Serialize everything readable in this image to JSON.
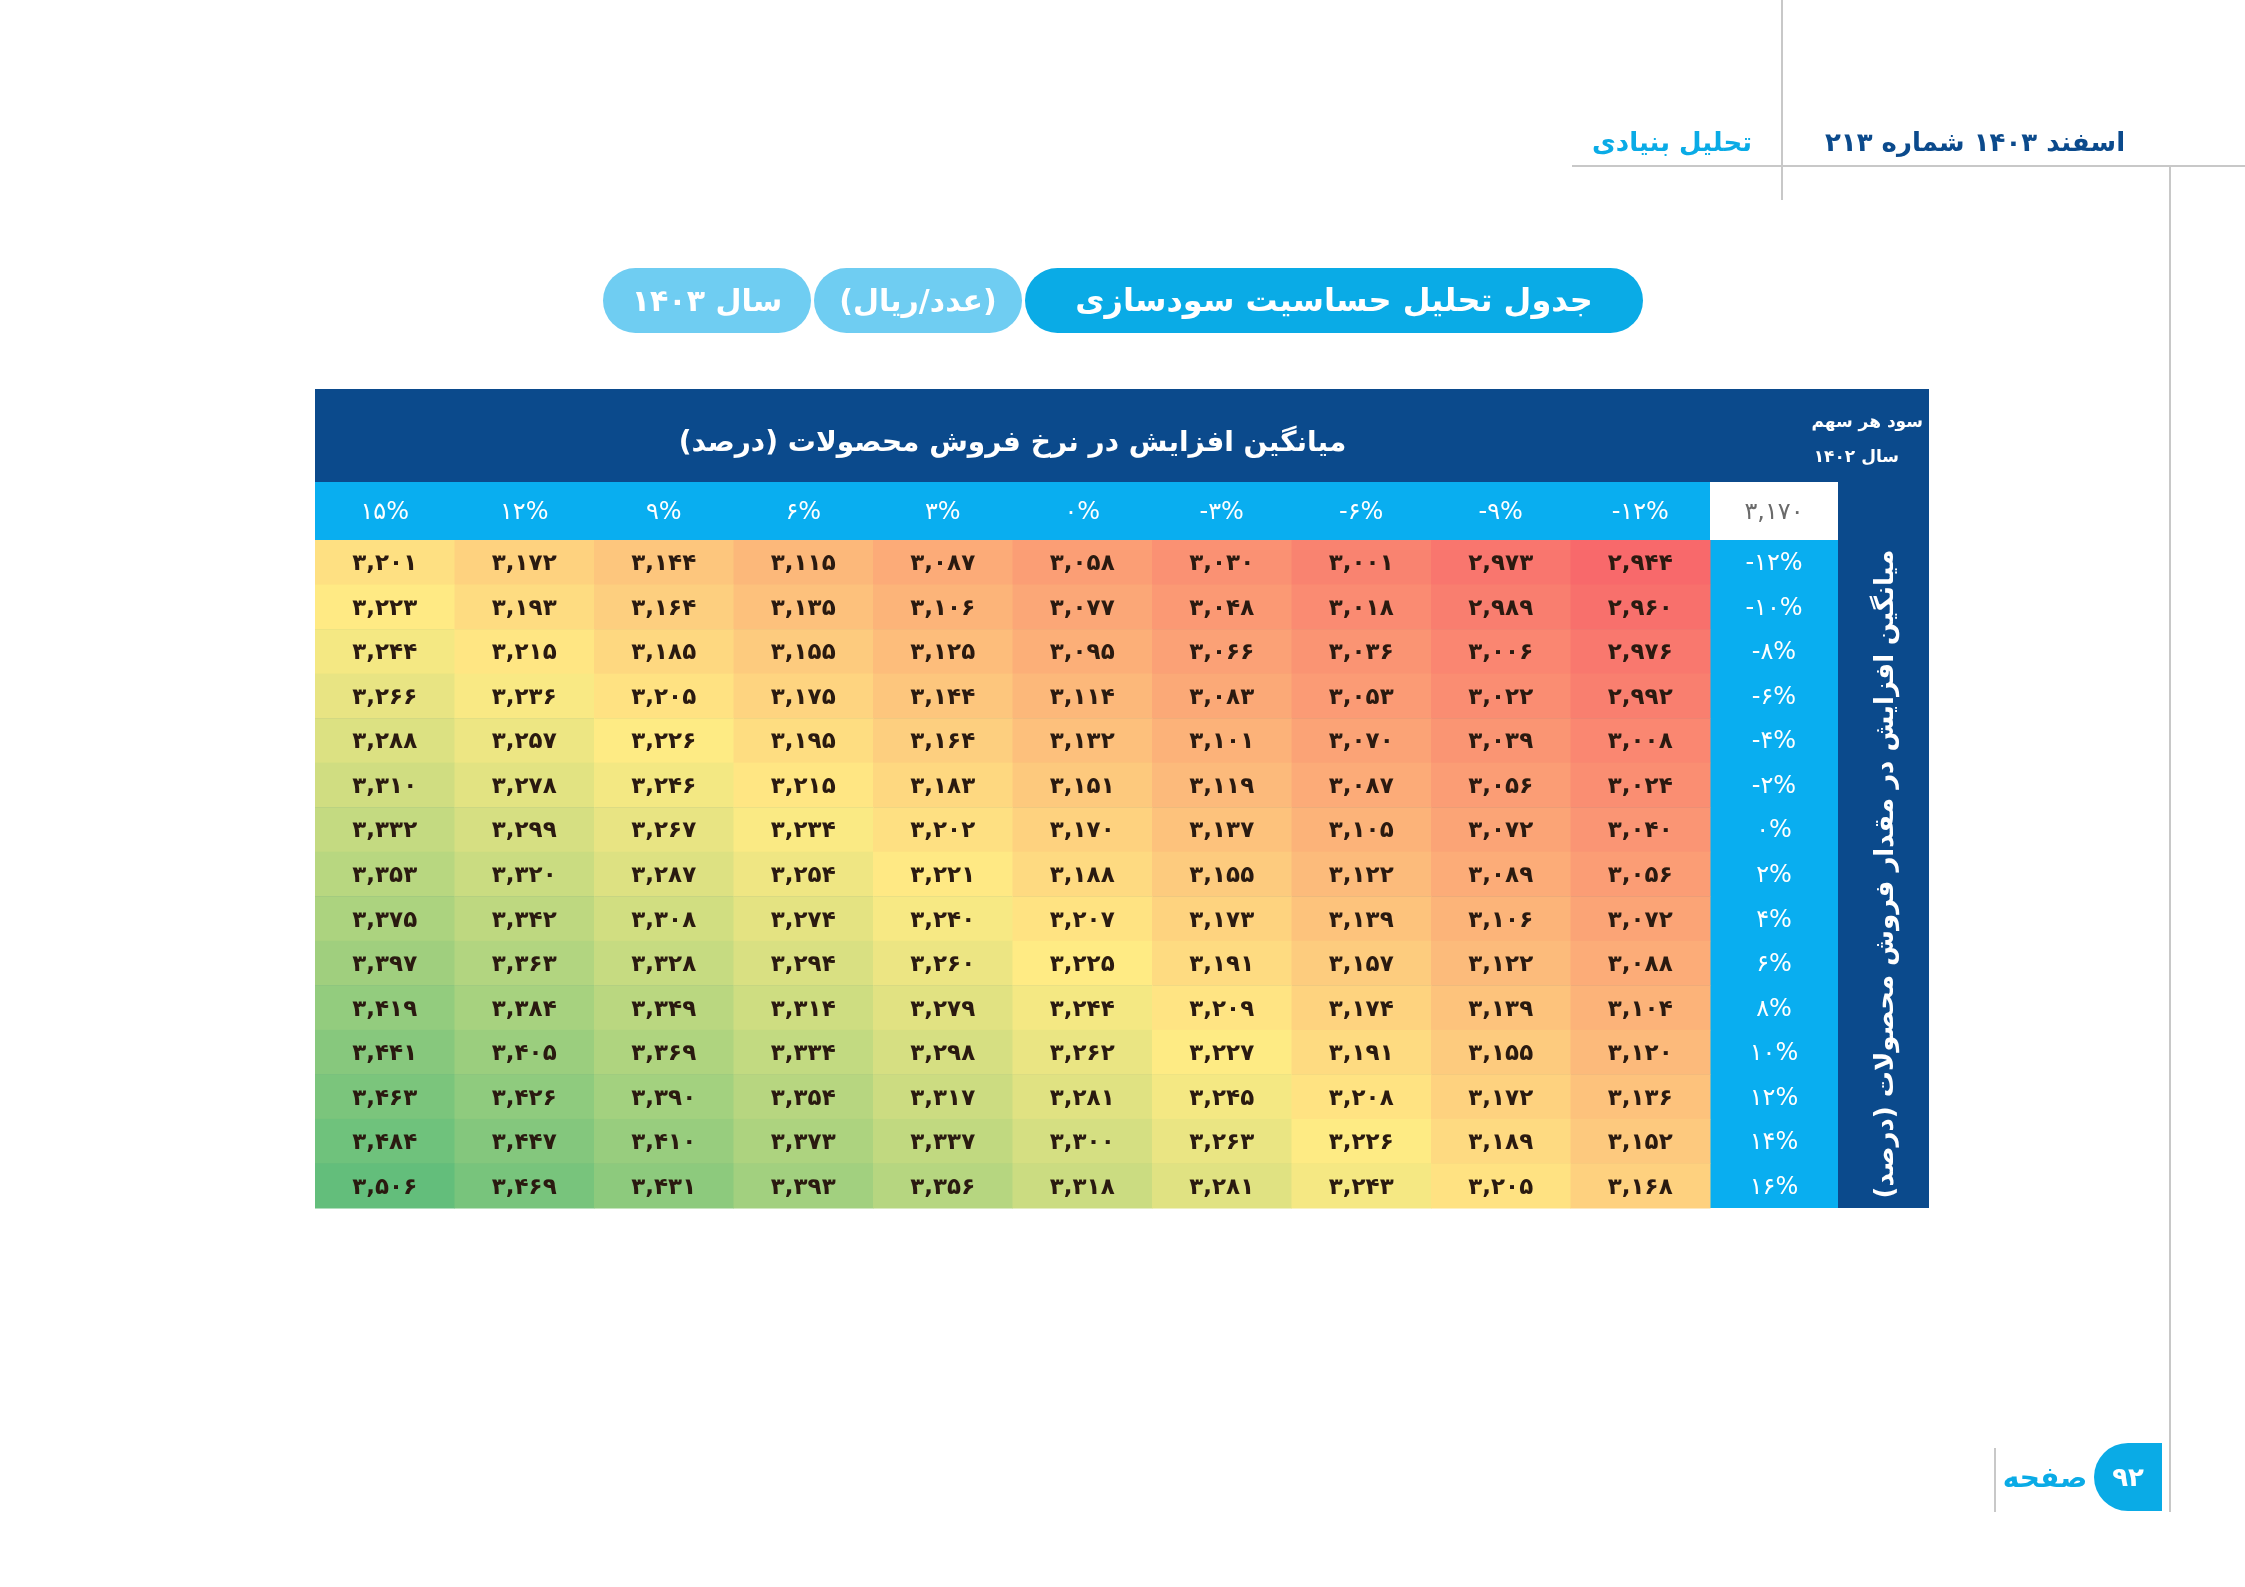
{
  "chart_data": {
    "type": "heatmap",
    "title": "جدول تحلیل حساسیت سودسازی",
    "subtitle": "(عدد/ریال)",
    "xlabel": "میانگین افزایش در نرخ فروش محصولات (درصد)",
    "ylabel": "میانگین افزایش در مقدار فروش محصولات (درصد)",
    "categories": [
      "۱۵%",
      "۱۲%",
      "۹%",
      "۶%",
      "۳%",
      "۰%",
      "-۳%",
      "-۶%",
      "-۹%",
      "-۱۲%"
    ],
    "y_categories": [
      "-۱۲%",
      "-۱۰%",
      "-۸%",
      "-۶%",
      "-۴%",
      "-۲%",
      "۰%",
      "۲%",
      "۴%",
      "۶%",
      "۸%",
      "۱۰%",
      "۱۲%",
      "۱۴%",
      "۱۶%"
    ],
    "cells": [
      [
        3201,
        3172,
        3144,
        3115,
        3087,
        3058,
        3030,
        3001,
        2973,
        2944
      ],
      [
        3223,
        3193,
        3164,
        3135,
        3106,
        3077,
        3048,
        3018,
        2989,
        2960
      ],
      [
        3244,
        3215,
        3185,
        3155,
        3125,
        3095,
        3066,
        3036,
        3006,
        2976
      ],
      [
        3266,
        3236,
        3205,
        3175,
        3144,
        3114,
        3083,
        3053,
        3022,
        2992
      ],
      [
        3288,
        3257,
        3226,
        3195,
        3164,
        3132,
        3101,
        3070,
        3039,
        3008
      ],
      [
        3310,
        3278,
        3246,
        3215,
        3183,
        3151,
        3119,
        3087,
        3056,
        3024
      ],
      [
        3332,
        3299,
        3267,
        3234,
        3202,
        3170,
        3137,
        3105,
        3072,
        3040
      ],
      [
        3353,
        3320,
        3287,
        3254,
        3221,
        3188,
        3155,
        3122,
        3089,
        3056
      ],
      [
        3375,
        3342,
        3308,
        3274,
        3240,
        3207,
        3173,
        3139,
        3106,
        3072
      ],
      [
        3397,
        3363,
        3328,
        3294,
        3260,
        3225,
        3191,
        3157,
        3122,
        3088
      ],
      [
        3419,
        3384,
        3349,
        3314,
        3279,
        3244,
        3209,
        3174,
        3139,
        3104
      ],
      [
        3441,
        3405,
        3369,
        3334,
        3298,
        3262,
        3227,
        3191,
        3155,
        3120
      ],
      [
        3463,
        3426,
        3390,
        3354,
        3317,
        3281,
        3245,
        3208,
        3172,
        3136
      ],
      [
        3484,
        3447,
        3410,
        3373,
        3337,
        3300,
        3263,
        3226,
        3189,
        3152
      ],
      [
        3506,
        3469,
        3431,
        3393,
        3356,
        3318,
        3281,
        3243,
        3205,
        3168
      ]
    ],
    "cell_labels": [
      [
        "۳,۲۰۱",
        "۳,۱۷۲",
        "۳,۱۴۴",
        "۳,۱۱۵",
        "۳,۰۸۷",
        "۳,۰۵۸",
        "۳,۰۳۰",
        "۳,۰۰۱",
        "۲,۹۷۳",
        "۲,۹۴۴"
      ],
      [
        "۳,۲۲۳",
        "۳,۱۹۳",
        "۳,۱۶۴",
        "۳,۱۳۵",
        "۳,۱۰۶",
        "۳,۰۷۷",
        "۳,۰۴۸",
        "۳,۰۱۸",
        "۲,۹۸۹",
        "۲,۹۶۰"
      ],
      [
        "۳,۲۴۴",
        "۳,۲۱۵",
        "۳,۱۸۵",
        "۳,۱۵۵",
        "۳,۱۲۵",
        "۳,۰۹۵",
        "۳,۰۶۶",
        "۳,۰۳۶",
        "۳,۰۰۶",
        "۲,۹۷۶"
      ],
      [
        "۳,۲۶۶",
        "۳,۲۳۶",
        "۳,۲۰۵",
        "۳,۱۷۵",
        "۳,۱۴۴",
        "۳,۱۱۴",
        "۳,۰۸۳",
        "۳,۰۵۳",
        "۳,۰۲۲",
        "۲,۹۹۲"
      ],
      [
        "۳,۲۸۸",
        "۳,۲۵۷",
        "۳,۲۲۶",
        "۳,۱۹۵",
        "۳,۱۶۴",
        "۳,۱۳۲",
        "۳,۱۰۱",
        "۳,۰۷۰",
        "۳,۰۳۹",
        "۳,۰۰۸"
      ],
      [
        "۳,۳۱۰",
        "۳,۲۷۸",
        "۳,۲۴۶",
        "۳,۲۱۵",
        "۳,۱۸۳",
        "۳,۱۵۱",
        "۳,۱۱۹",
        "۳,۰۸۷",
        "۳,۰۵۶",
        "۳,۰۲۴"
      ],
      [
        "۳,۳۳۲",
        "۳,۲۹۹",
        "۳,۲۶۷",
        "۳,۲۳۴",
        "۳,۲۰۲",
        "۳,۱۷۰",
        "۳,۱۳۷",
        "۳,۱۰۵",
        "۳,۰۷۲",
        "۳,۰۴۰"
      ],
      [
        "۳,۳۵۳",
        "۳,۳۲۰",
        "۳,۲۸۷",
        "۳,۲۵۴",
        "۳,۲۲۱",
        "۳,۱۸۸",
        "۳,۱۵۵",
        "۳,۱۲۲",
        "۳,۰۸۹",
        "۳,۰۵۶"
      ],
      [
        "۳,۳۷۵",
        "۳,۳۴۲",
        "۳,۳۰۸",
        "۳,۲۷۴",
        "۳,۲۴۰",
        "۳,۲۰۷",
        "۳,۱۷۳",
        "۳,۱۳۹",
        "۳,۱۰۶",
        "۳,۰۷۲"
      ],
      [
        "۳,۳۹۷",
        "۳,۳۶۳",
        "۳,۳۲۸",
        "۳,۲۹۴",
        "۳,۲۶۰",
        "۳,۲۲۵",
        "۳,۱۹۱",
        "۳,۱۵۷",
        "۳,۱۲۲",
        "۳,۰۸۸"
      ],
      [
        "۳,۴۱۹",
        "۳,۳۸۴",
        "۳,۳۴۹",
        "۳,۳۱۴",
        "۳,۲۷۹",
        "۳,۲۴۴",
        "۳,۲۰۹",
        "۳,۱۷۴",
        "۳,۱۳۹",
        "۳,۱۰۴"
      ],
      [
        "۳,۴۴۱",
        "۳,۴۰۵",
        "۳,۳۶۹",
        "۳,۳۳۴",
        "۳,۲۹۸",
        "۳,۲۶۲",
        "۳,۲۲۷",
        "۳,۱۹۱",
        "۳,۱۵۵",
        "۳,۱۲۰"
      ],
      [
        "۳,۴۶۳",
        "۳,۴۲۶",
        "۳,۳۹۰",
        "۳,۳۵۴",
        "۳,۳۱۷",
        "۳,۲۸۱",
        "۳,۲۴۵",
        "۳,۲۰۸",
        "۳,۱۷۲",
        "۳,۱۳۶"
      ],
      [
        "۳,۴۸۴",
        "۳,۴۴۷",
        "۳,۴۱۰",
        "۳,۳۷۳",
        "۳,۳۳۷",
        "۳,۳۰۰",
        "۳,۲۶۳",
        "۳,۲۲۶",
        "۳,۱۸۹",
        "۳,۱۵۲"
      ],
      [
        "۳,۵۰۶",
        "۳,۴۶۹",
        "۳,۴۳۱",
        "۳,۳۹۳",
        "۳,۳۵۶",
        "۳,۳۱۸",
        "۳,۲۸۱",
        "۳,۲۴۳",
        "۳,۲۰۵",
        "۳,۱۶۸"
      ]
    ],
    "annotations": [
      "سال ۱۴۰۳",
      "سود هر سهم",
      "سال ۱۴۰۲",
      "۳,۱۷۰",
      "اسفند ۱۴۰۳   شماره ۲۱۳",
      "تحلیل بنیادی",
      "صفحه",
      "۹۲"
    ]
  }
}
